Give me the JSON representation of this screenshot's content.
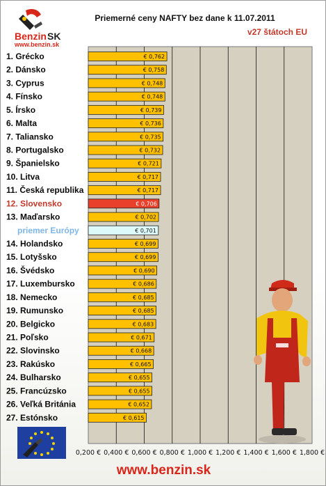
{
  "header": {
    "logo_benzin": "Benzin",
    "logo_sk": "SK",
    "logo_url": "www.benzin.sk",
    "title": "Priemerné ceny NAFTY bez dane k 11.07.2011",
    "subtitle": "v27 štátoch EU"
  },
  "footer": {
    "url": "www.benzin.sk"
  },
  "colors": {
    "bar": "#ffc000",
    "highlight": "#e8402a",
    "average": "#ddfafa",
    "plot_bg": "#d5d0c0",
    "highlight_text": "#c0392b",
    "average_text": "#7fb6e8"
  },
  "icons": {
    "logo": "benzin-sk-logo",
    "flag": "eu-flag-pump-icon",
    "mascot": "fuel-attendant-mascot"
  },
  "chart_data": {
    "type": "bar",
    "orientation": "horizontal",
    "title": "Priemerné ceny NAFTY bez dane k 11.07.2011",
    "subtitle": "v27 štátoch EU",
    "xlim": [
      0.2,
      1.8
    ],
    "ticks": [
      "0,200 €",
      "0,400 €",
      "0,600 €",
      "0,800 €",
      "1,000 €",
      "1,200 €",
      "1,400 €",
      "1,600 €",
      "1,800 €"
    ],
    "grid": true,
    "categories": [
      "1. Grécko",
      "2. Dánsko",
      "3. Cyprus",
      "4. Fínsko",
      "5. Írsko",
      "6. Malta",
      "7. Taliansko",
      "8. Portugalsko",
      "9. Španielsko",
      "10. Litva",
      "11. Česká republika",
      "12. Slovensko",
      "13. Maďarsko",
      "priemer Európy",
      "14. Holandsko",
      "15. Lotyšsko",
      "16. Švédsko",
      "17. Luxembursko",
      "18. Nemecko",
      "19. Rumunsko",
      "20. Belgicko",
      "21. Poľsko",
      "22. Slovinsko",
      "23. Rakúsko",
      "24. Bulharsko",
      "25. Francúzsko",
      "26. Veľká Británia",
      "27. Estónsko"
    ],
    "values": [
      0.762,
      0.758,
      0.748,
      0.748,
      0.739,
      0.736,
      0.735,
      0.732,
      0.721,
      0.717,
      0.717,
      0.706,
      0.702,
      0.701,
      0.699,
      0.699,
      0.69,
      0.686,
      0.685,
      0.685,
      0.683,
      0.671,
      0.668,
      0.665,
      0.655,
      0.655,
      0.652,
      0.615
    ],
    "value_labels": [
      "€ 0,762",
      "€ 0,758",
      "€ 0,748",
      "€ 0,748",
      "€ 0,739",
      "€ 0,736",
      "€ 0,735",
      "€ 0,732",
      "€ 0,721",
      "€ 0,717",
      "€ 0,717",
      "€ 0,706",
      "€ 0,702",
      "€ 0,701",
      "€ 0,699",
      "€ 0,699",
      "€ 0,690",
      "€ 0,686",
      "€ 0,685",
      "€ 0,685",
      "€ 0,683",
      "€ 0,671",
      "€ 0,668",
      "€ 0,665",
      "€ 0,655",
      "€ 0,655",
      "€ 0,652",
      "€ 0,615"
    ],
    "highlight_index": 11,
    "average_index": 13
  }
}
